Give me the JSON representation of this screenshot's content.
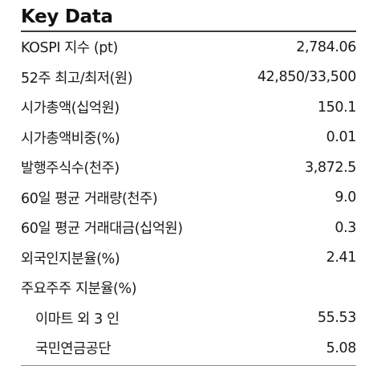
{
  "title": "Key Data",
  "rows": [
    {
      "label": "KOSPI 지수 (pt)",
      "value": "2,784.06"
    },
    {
      "label": "52주 최고/최저(원)",
      "value": "42,850/33,500"
    },
    {
      "label": "시가총액(십억원)",
      "value": "150.1"
    },
    {
      "label": "시가총액비중(%)",
      "value": "0.01"
    },
    {
      "label": "발행주식수(천주)",
      "value": "3,872.5"
    },
    {
      "label": "60일 평균 거래량(천주)",
      "value": "9.0"
    },
    {
      "label": "60일 평균 거래대금(십억원)",
      "value": "0.3"
    },
    {
      "label": "외국인지분율(%)",
      "value": "2.41"
    },
    {
      "label": "주요주주 지분율(%)",
      "value": ""
    },
    {
      "label": "이마트 외 3 인",
      "value": "55.53"
    },
    {
      "label": "국민연금공단",
      "value": "5.08"
    }
  ]
}
